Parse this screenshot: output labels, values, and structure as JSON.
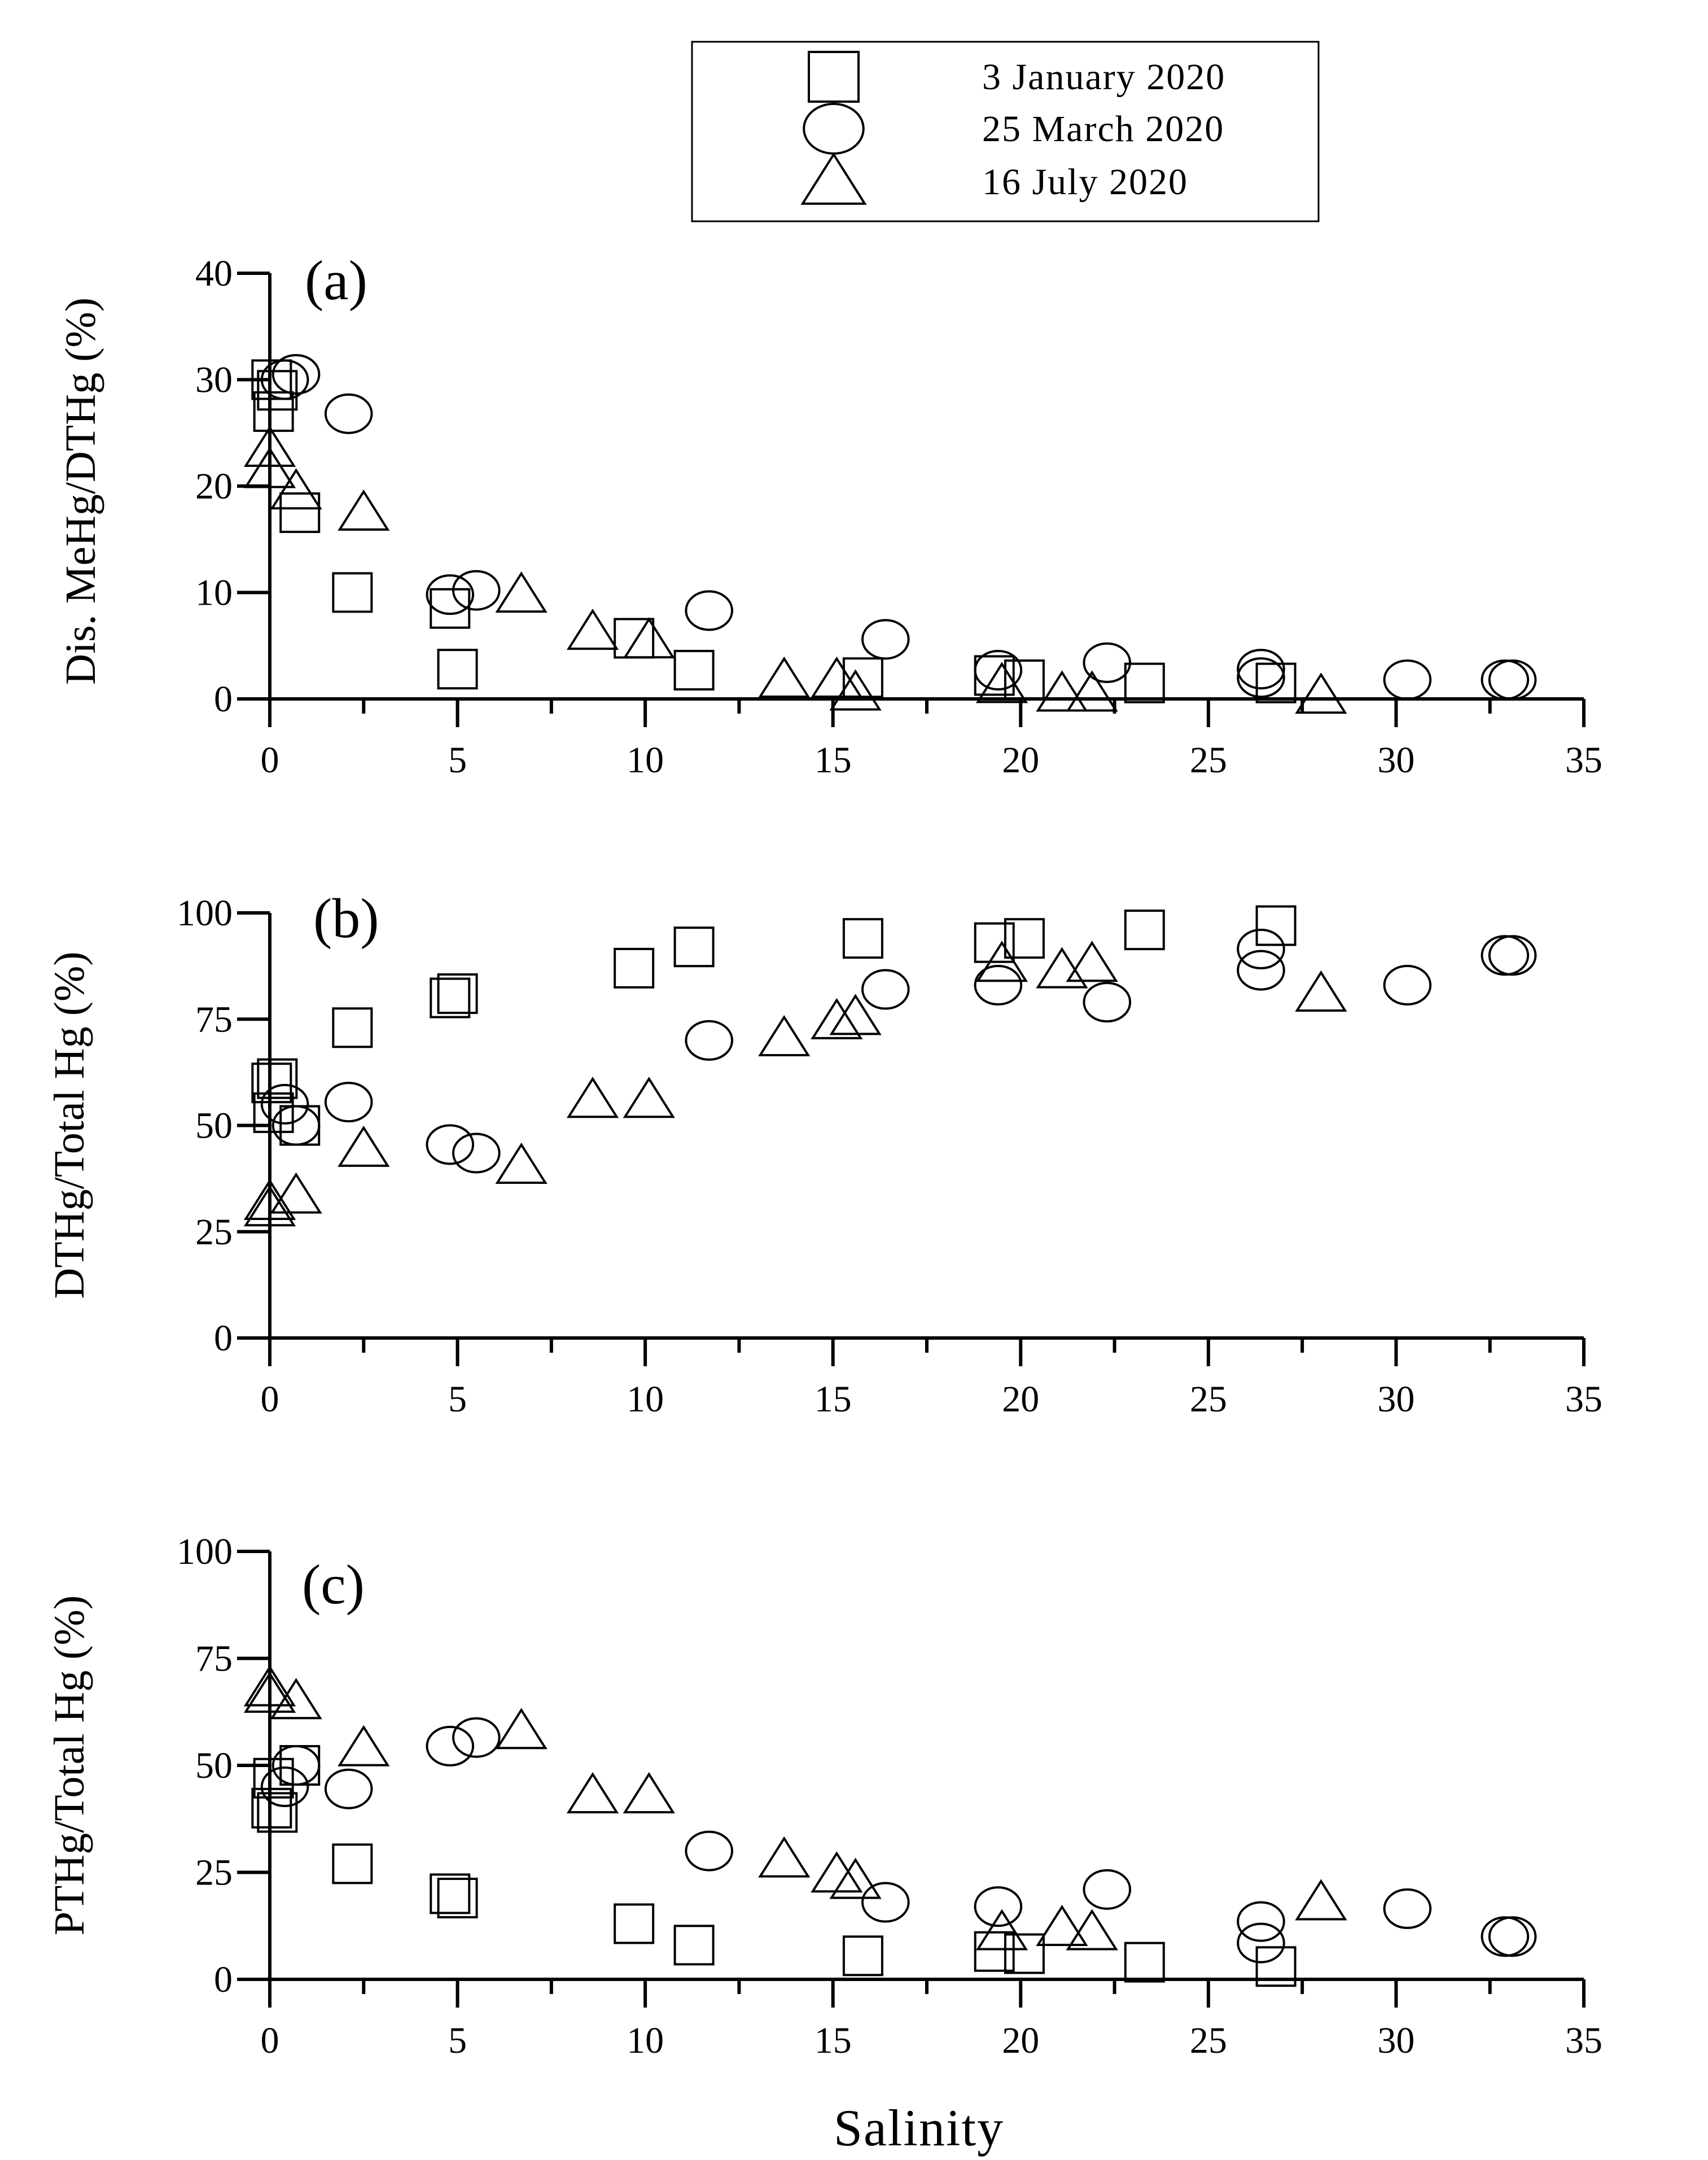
{
  "chart_data": [
    {
      "type": "scatter",
      "panel_label": "(a)",
      "ylabel": "Dis. MeHg/DTHg (%)",
      "xlim": [
        0,
        35
      ],
      "ylim": [
        0,
        40
      ],
      "xticks": [
        0,
        5,
        10,
        15,
        20,
        25,
        30,
        35
      ],
      "yticks": [
        0,
        10,
        20,
        30,
        40
      ],
      "series": [
        {
          "name": "3 January 2020",
          "marker": "square",
          "x": [
            0.05,
            0.1,
            0.2,
            0.8,
            2.2,
            4.8,
            5.0,
            9.7,
            11.3,
            15.8,
            19.3,
            20.1,
            23.3,
            26.8
          ],
          "y": [
            30,
            27,
            29,
            17.5,
            10,
            8.5,
            2.8,
            5.7,
            2.7,
            2.0,
            2.2,
            1.8,
            1.5,
            1.5
          ]
        },
        {
          "name": "25 March 2020",
          "marker": "circle",
          "x": [
            0.4,
            0.7,
            2.1,
            4.8,
            5.5,
            11.7,
            16.4,
            19.4,
            22.3,
            26.4,
            26.4,
            30.3,
            32.9,
            33.1
          ],
          "y": [
            30,
            30.5,
            26.8,
            9.8,
            10.2,
            8.3,
            5.6,
            2.7,
            3.4,
            2.8,
            2.0,
            1.8,
            1.8,
            1.8
          ]
        },
        {
          "name": "16 July 2020",
          "marker": "triangle",
          "x": [
            0.0,
            0.0,
            0.7,
            2.5,
            6.7,
            8.6,
            10.1,
            13.7,
            15.1,
            15.6,
            19.5,
            21.1,
            21.9,
            28.0
          ],
          "y": [
            23.5,
            21.5,
            19.5,
            17.5,
            9.8,
            6.3,
            5.5,
            1.8,
            1.8,
            0.6,
            1.3,
            0.5,
            0.5,
            0.3
          ]
        }
      ]
    },
    {
      "type": "scatter",
      "panel_label": "(b)",
      "ylabel": "DTHg/Total Hg (%)",
      "xlim": [
        0,
        35
      ],
      "ylim": [
        0,
        100
      ],
      "xticks": [
        0,
        5,
        10,
        15,
        20,
        25,
        30,
        35
      ],
      "yticks": [
        0,
        25,
        50,
        75,
        100
      ],
      "series": [
        {
          "name": "3 January 2020",
          "marker": "square",
          "x": [
            0.05,
            0.1,
            0.2,
            0.8,
            2.2,
            4.8,
            5.0,
            9.7,
            11.3,
            15.8,
            19.3,
            20.1,
            23.3,
            26.8
          ],
          "y": [
            60,
            53,
            61,
            50,
            73,
            80,
            81,
            87,
            92,
            94,
            93,
            94,
            96,
            97
          ]
        },
        {
          "name": "25 March 2020",
          "marker": "circle",
          "x": [
            0.4,
            0.7,
            2.1,
            4.8,
            5.5,
            11.7,
            16.4,
            19.4,
            22.3,
            26.4,
            26.4,
            30.3,
            32.9,
            33.1
          ],
          "y": [
            55,
            50,
            55.5,
            45.5,
            43.5,
            70,
            82,
            83,
            79,
            91.5,
            86.5,
            83,
            90,
            90
          ]
        },
        {
          "name": "16 July 2020",
          "marker": "triangle",
          "x": [
            0.0,
            0.0,
            0.7,
            2.5,
            6.7,
            8.6,
            10.1,
            13.7,
            15.1,
            15.6,
            19.5,
            21.1,
            21.9,
            28.0
          ],
          "y": [
            32,
            30.5,
            33.5,
            44.5,
            40.5,
            56,
            56,
            70.5,
            74.5,
            75.5,
            88,
            86.5,
            88,
            81
          ]
        }
      ]
    },
    {
      "type": "scatter",
      "panel_label": "(c)",
      "ylabel": "PTHg/Total Hg (%)",
      "xlim": [
        0,
        35
      ],
      "ylim": [
        0,
        100
      ],
      "xticks": [
        0,
        5,
        10,
        15,
        20,
        25,
        30,
        35
      ],
      "yticks": [
        0,
        25,
        50,
        75,
        100
      ],
      "series": [
        {
          "name": "3 January 2020",
          "marker": "square",
          "x": [
            0.05,
            0.1,
            0.2,
            0.8,
            2.2,
            4.8,
            5.0,
            9.7,
            11.3,
            15.8,
            19.3,
            20.1,
            23.3,
            26.8
          ],
          "y": [
            40,
            47,
            39,
            50,
            27,
            20,
            19,
            13,
            8,
            5.5,
            6.5,
            6,
            4,
            3
          ]
        },
        {
          "name": "25 March 2020",
          "marker": "circle",
          "x": [
            0.4,
            0.7,
            2.1,
            4.8,
            5.5,
            11.7,
            16.4,
            19.4,
            22.3,
            26.4,
            26.4,
            30.3,
            32.9,
            33.1
          ],
          "y": [
            45,
            50,
            44.5,
            54.5,
            56.5,
            30,
            18,
            17,
            21,
            13.5,
            8.5,
            16.5,
            10,
            10
          ]
        },
        {
          "name": "16 July 2020",
          "marker": "triangle",
          "x": [
            0.0,
            0.0,
            0.7,
            2.5,
            6.7,
            8.6,
            10.1,
            13.7,
            15.1,
            15.6,
            19.5,
            21.1,
            21.9,
            28.0
          ],
          "y": [
            68,
            66.5,
            65,
            54,
            58,
            43,
            43,
            28,
            24.5,
            23,
            11,
            12,
            11,
            18
          ]
        }
      ]
    }
  ],
  "legend": {
    "placement": "top-center",
    "entries": [
      {
        "label": "3 January 2020",
        "marker": "square"
      },
      {
        "label": "25 March 2020",
        "marker": "circle"
      },
      {
        "label": "16 July 2020",
        "marker": "triangle"
      }
    ]
  },
  "xlabel": "Salinity"
}
